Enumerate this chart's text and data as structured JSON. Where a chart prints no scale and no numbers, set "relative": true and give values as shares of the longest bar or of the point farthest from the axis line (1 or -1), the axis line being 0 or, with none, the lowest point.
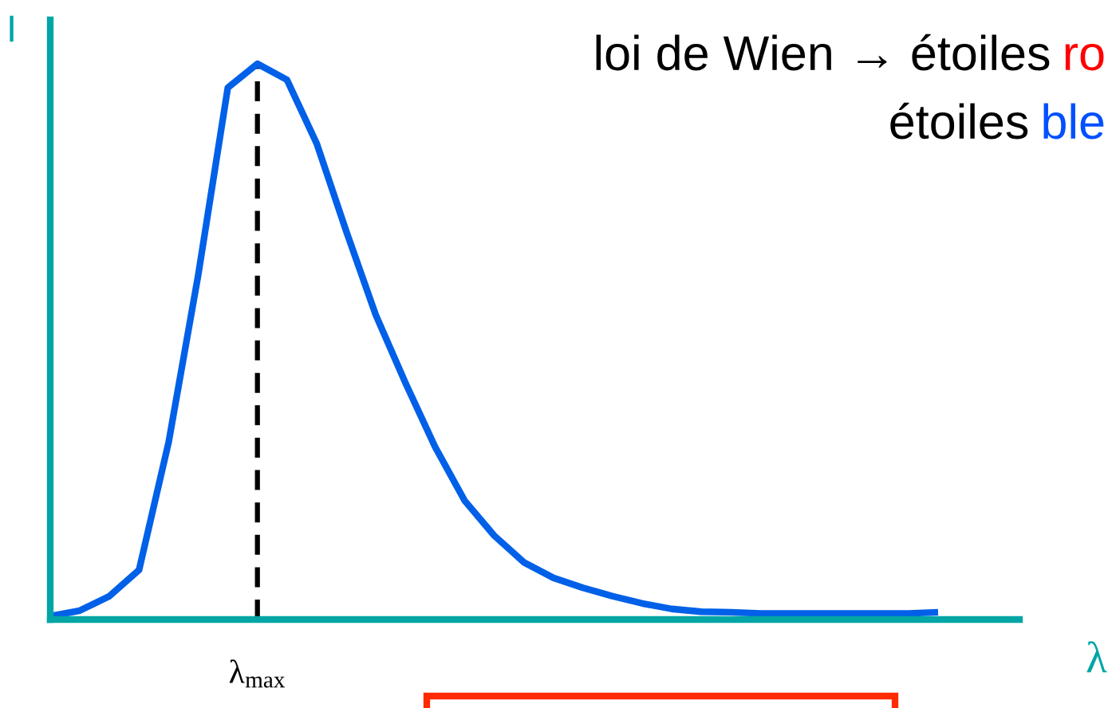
{
  "chart_data": {
    "type": "line",
    "relative": true,
    "title": "loi de Wien → étoiles ro",
    "subtitle": "étoiles ble",
    "xlabel": "λ",
    "ylabel": "I",
    "categories": [
      null,
      null,
      null,
      null,
      null,
      null,
      null,
      null,
      null,
      null,
      null,
      null,
      null,
      null,
      null,
      null,
      null,
      null,
      null,
      null,
      null,
      null,
      null,
      null,
      null,
      null,
      null,
      null,
      null,
      null,
      null
    ],
    "series": [
      {
        "color": "#0060e8",
        "values": [
          0.006,
          0.016,
          0.042,
          0.089,
          0.319,
          0.62,
          0.957,
          1,
          0.971,
          0.857,
          0.699,
          0.548,
          0.426,
          0.311,
          0.214,
          0.151,
          0.103,
          0.075,
          0.057,
          0.042,
          0.029,
          0.019,
          0.014,
          0.013,
          0.011,
          0.011,
          0.011,
          0.011,
          0.011,
          0.011,
          0.013
        ]
      }
    ],
    "annotations": [
      "λ$_{max}$"
    ],
    "marker": "none",
    "line_style": "solid"
  }
}
